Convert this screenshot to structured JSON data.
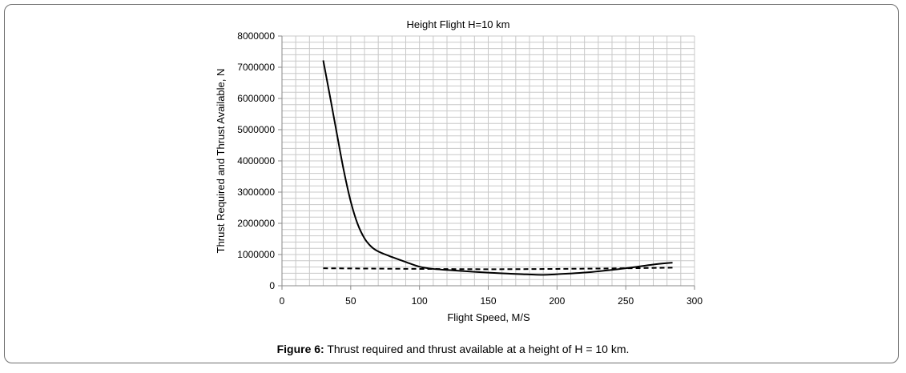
{
  "figure": {
    "caption_label": "Figure 6:",
    "caption_text": "Thrust required and thrust available at a height of H = 10 km."
  },
  "chart_data": {
    "type": "line",
    "title": "Height Flight H=10 km",
    "xlabel": "Flight Speed, M/S",
    "ylabel": "Thrust Required and Thrust Available, N",
    "xlim": [
      0,
      300
    ],
    "ylim": [
      0,
      8000000
    ],
    "xticks": [
      "0",
      "50",
      "100",
      "150",
      "200",
      "250",
      "300"
    ],
    "yticks": [
      "0",
      "1000000",
      "2000000",
      "3000000",
      "4000000",
      "5000000",
      "6000000",
      "7000000",
      "8000000"
    ],
    "grid": true,
    "series": [
      {
        "style": "solid",
        "x": [
          30,
          35,
          40,
          45,
          50,
          55,
          60,
          65,
          70,
          80,
          90,
          100,
          110,
          125,
          150,
          175,
          190,
          200,
          225,
          250,
          270,
          284
        ],
        "y": [
          7220000,
          6050000,
          4850000,
          3680000,
          2700000,
          1980000,
          1520000,
          1250000,
          1100000,
          920000,
          760000,
          610000,
          540000,
          490000,
          420000,
          370000,
          350000,
          370000,
          440000,
          560000,
          680000,
          740000
        ]
      },
      {
        "style": "dashed",
        "x": [
          30,
          100,
          150,
          200,
          250,
          284
        ],
        "y": [
          560000,
          540000,
          530000,
          540000,
          560000,
          580000
        ]
      }
    ]
  }
}
